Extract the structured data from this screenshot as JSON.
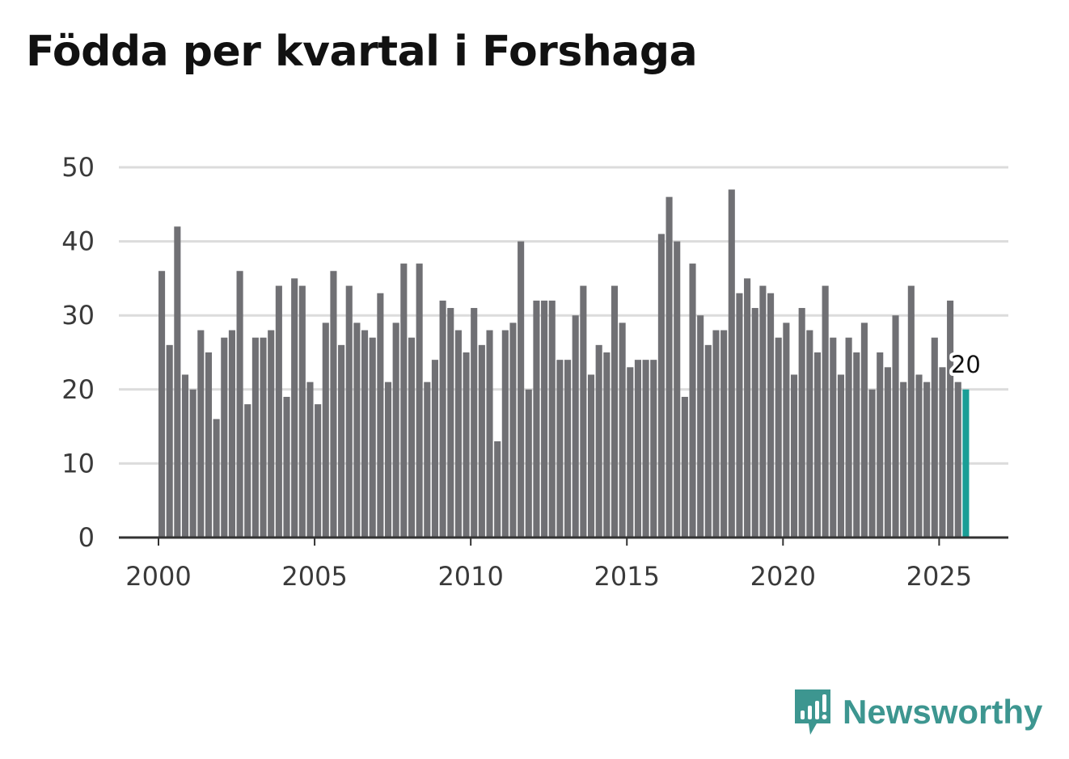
{
  "chart_data": {
    "type": "bar",
    "title": "Födda per kvartal i Forshaga",
    "xlabel": "",
    "ylabel": "",
    "ylim": [
      0,
      50
    ],
    "yticks": [
      0,
      10,
      20,
      30,
      40,
      50
    ],
    "xticks": [
      "2000",
      "2005",
      "2010",
      "2015",
      "2020",
      "2025"
    ],
    "x_start_year": 2000,
    "periods_per_year": 4,
    "values": [
      36,
      26,
      42,
      22,
      20,
      28,
      25,
      16,
      27,
      28,
      36,
      18,
      27,
      27,
      28,
      34,
      19,
      35,
      34,
      21,
      18,
      29,
      36,
      26,
      34,
      29,
      28,
      27,
      33,
      21,
      29,
      37,
      27,
      37,
      21,
      24,
      32,
      31,
      28,
      25,
      31,
      26,
      28,
      13,
      28,
      29,
      40,
      20,
      32,
      32,
      32,
      24,
      24,
      30,
      34,
      22,
      26,
      25,
      34,
      29,
      23,
      24,
      24,
      24,
      41,
      46,
      40,
      19,
      37,
      30,
      26,
      28,
      28,
      47,
      33,
      35,
      31,
      34,
      33,
      27,
      29,
      22,
      31,
      28,
      25,
      34,
      27,
      22,
      27,
      25,
      29,
      20,
      25,
      23,
      30,
      21,
      34,
      22,
      21,
      27,
      23,
      32,
      21,
      20
    ],
    "highlight_index": 103,
    "highlight_label": "20",
    "colors": {
      "bar": "#707074",
      "highlight": "#1a9e96",
      "grid": "#dcdcdc",
      "axis": "#333333"
    }
  },
  "brand": {
    "name": "Newsworthy",
    "color": "#3d9690"
  }
}
